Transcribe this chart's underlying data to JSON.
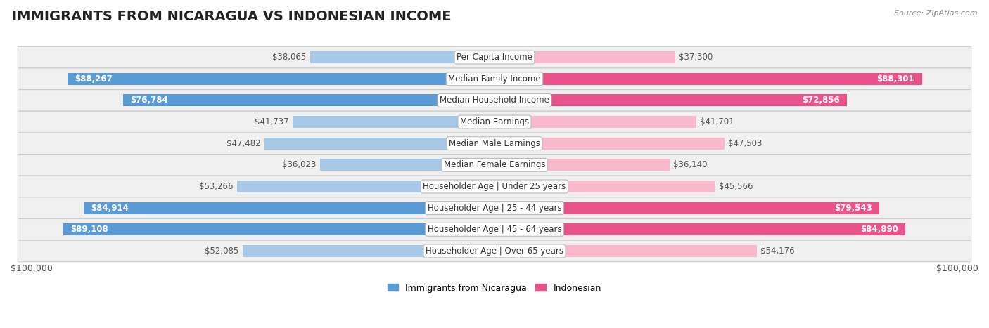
{
  "title": "IMMIGRANTS FROM NICARAGUA VS INDONESIAN INCOME",
  "source": "Source: ZipAtlas.com",
  "categories": [
    "Per Capita Income",
    "Median Family Income",
    "Median Household Income",
    "Median Earnings",
    "Median Male Earnings",
    "Median Female Earnings",
    "Householder Age | Under 25 years",
    "Householder Age | 25 - 44 years",
    "Householder Age | 45 - 64 years",
    "Householder Age | Over 65 years"
  ],
  "nicaragua_values": [
    38065,
    88267,
    76784,
    41737,
    47482,
    36023,
    53266,
    84914,
    89108,
    52085
  ],
  "indonesian_values": [
    37300,
    88301,
    72856,
    41701,
    47503,
    36140,
    45566,
    79543,
    84890,
    54176
  ],
  "nicaragua_labels": [
    "$38,065",
    "$88,267",
    "$76,784",
    "$41,737",
    "$47,482",
    "$36,023",
    "$53,266",
    "$84,914",
    "$89,108",
    "$52,085"
  ],
  "indonesian_labels": [
    "$37,300",
    "$88,301",
    "$72,856",
    "$41,701",
    "$47,503",
    "$36,140",
    "$45,566",
    "$79,543",
    "$84,890",
    "$54,176"
  ],
  "nicaragua_color_light": "#a8c8e8",
  "nicaragua_color_dark": "#5b9bd5",
  "indonesian_color_light": "#f9b8cc",
  "indonesian_color_dark": "#e8538a",
  "inside_label_color": "#ffffff",
  "outside_label_color": "#555555",
  "max_value": 100000,
  "row_bg_color": "#f0f0f0",
  "row_border_color": "#cccccc",
  "background_color": "#ffffff",
  "legend_nicaragua": "Immigrants from Nicaragua",
  "legend_indonesian": "Indonesian",
  "xlabel_left": "$100,000",
  "xlabel_right": "$100,000",
  "title_fontsize": 14,
  "label_fontsize": 8.5,
  "tick_fontsize": 9,
  "category_fontsize": 8.5,
  "inside_threshold": 55000
}
